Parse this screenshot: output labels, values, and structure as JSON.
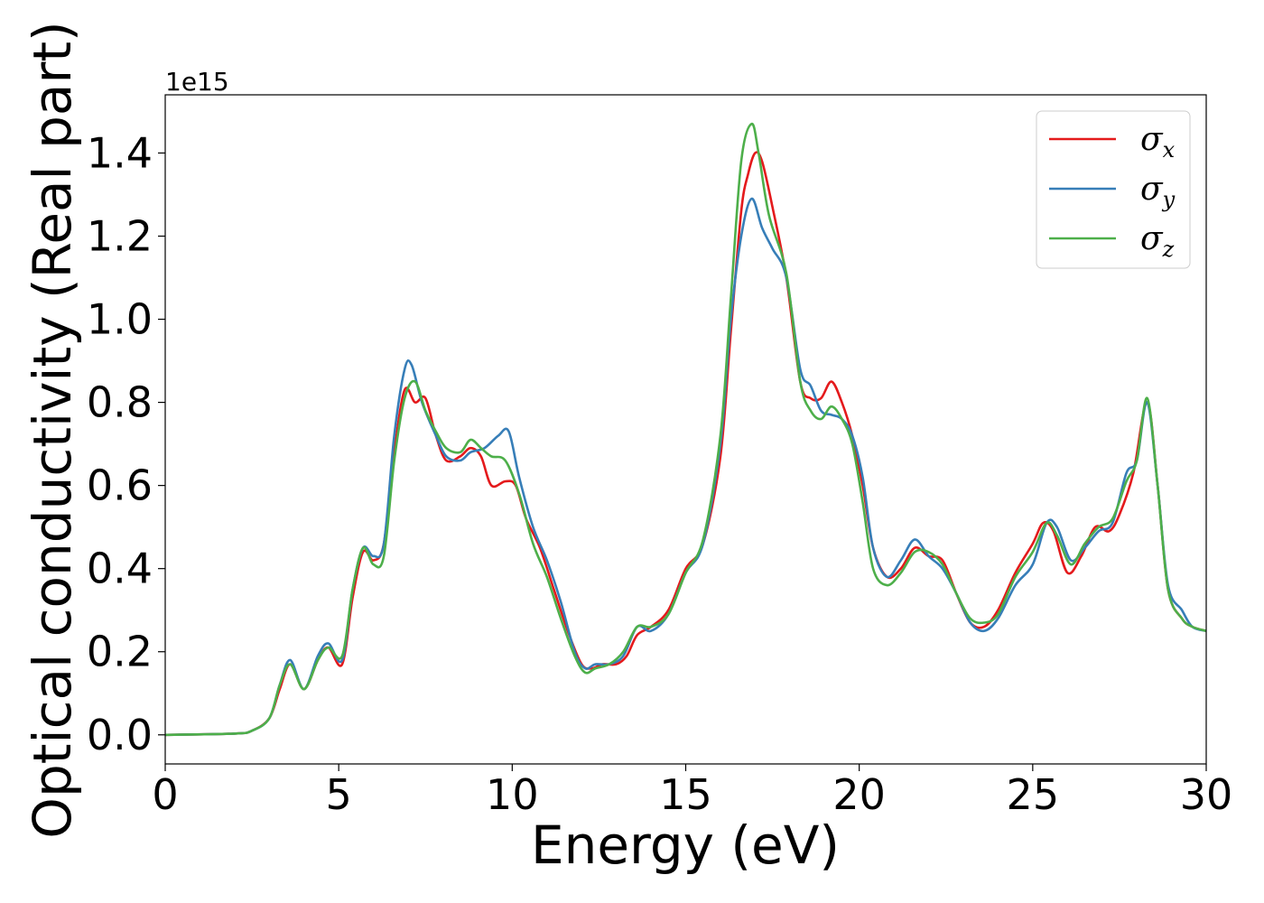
{
  "chart_data": {
    "type": "line",
    "xlabel": "Energy (eV)",
    "ylabel": "Optical conductivity (Real part)",
    "offset_text": "1e15",
    "xlim": [
      0,
      30
    ],
    "ylim": [
      -0.07,
      1.54
    ],
    "xticks": [
      0,
      5,
      10,
      15,
      20,
      25,
      30
    ],
    "yticks": [
      0.0,
      0.2,
      0.4,
      0.6,
      0.8,
      1.0,
      1.2,
      1.4
    ],
    "xtick_labels": [
      "0",
      "5",
      "10",
      "15",
      "20",
      "25",
      "30"
    ],
    "ytick_labels": [
      "0.0",
      "0.2",
      "0.4",
      "0.6",
      "0.8",
      "1.0",
      "1.2",
      "1.4"
    ],
    "grid": false,
    "legend_position": "top-right",
    "series": [
      {
        "name": "σx",
        "symbol": "σ",
        "subscript": "x",
        "color": "#e41a1c",
        "points": [
          [
            0,
            0.0
          ],
          [
            2.0,
            0.003
          ],
          [
            2.5,
            0.01
          ],
          [
            3.0,
            0.04
          ],
          [
            3.3,
            0.11
          ],
          [
            3.6,
            0.17
          ],
          [
            4.0,
            0.11
          ],
          [
            4.4,
            0.18
          ],
          [
            4.7,
            0.21
          ],
          [
            5.1,
            0.17
          ],
          [
            5.4,
            0.33
          ],
          [
            5.7,
            0.44
          ],
          [
            6.0,
            0.42
          ],
          [
            6.3,
            0.46
          ],
          [
            6.6,
            0.68
          ],
          [
            6.9,
            0.83
          ],
          [
            7.2,
            0.8
          ],
          [
            7.5,
            0.81
          ],
          [
            7.8,
            0.72
          ],
          [
            8.1,
            0.66
          ],
          [
            8.5,
            0.67
          ],
          [
            8.8,
            0.69
          ],
          [
            9.1,
            0.67
          ],
          [
            9.4,
            0.6
          ],
          [
            9.8,
            0.61
          ],
          [
            10.1,
            0.6
          ],
          [
            10.4,
            0.52
          ],
          [
            10.8,
            0.45
          ],
          [
            11.2,
            0.35
          ],
          [
            11.6,
            0.25
          ],
          [
            12.0,
            0.17
          ],
          [
            12.3,
            0.16
          ],
          [
            12.6,
            0.17
          ],
          [
            13.0,
            0.17
          ],
          [
            13.3,
            0.19
          ],
          [
            13.6,
            0.24
          ],
          [
            14.0,
            0.26
          ],
          [
            14.5,
            0.3
          ],
          [
            15.0,
            0.4
          ],
          [
            15.5,
            0.46
          ],
          [
            16.0,
            0.67
          ],
          [
            16.3,
            0.97
          ],
          [
            16.6,
            1.26
          ],
          [
            16.8,
            1.35
          ],
          [
            17.0,
            1.4
          ],
          [
            17.2,
            1.38
          ],
          [
            17.5,
            1.27
          ],
          [
            17.9,
            1.1
          ],
          [
            18.3,
            0.85
          ],
          [
            18.6,
            0.81
          ],
          [
            18.9,
            0.81
          ],
          [
            19.2,
            0.85
          ],
          [
            19.5,
            0.8
          ],
          [
            19.8,
            0.72
          ],
          [
            20.1,
            0.6
          ],
          [
            20.4,
            0.45
          ],
          [
            20.8,
            0.38
          ],
          [
            21.2,
            0.4
          ],
          [
            21.6,
            0.45
          ],
          [
            22.0,
            0.43
          ],
          [
            22.4,
            0.42
          ],
          [
            22.8,
            0.34
          ],
          [
            23.2,
            0.27
          ],
          [
            23.6,
            0.26
          ],
          [
            24.0,
            0.3
          ],
          [
            24.5,
            0.39
          ],
          [
            25.0,
            0.46
          ],
          [
            25.3,
            0.51
          ],
          [
            25.6,
            0.49
          ],
          [
            26.0,
            0.39
          ],
          [
            26.4,
            0.43
          ],
          [
            26.8,
            0.5
          ],
          [
            27.2,
            0.49
          ],
          [
            27.5,
            0.53
          ],
          [
            27.9,
            0.63
          ],
          [
            28.3,
            0.8
          ],
          [
            28.6,
            0.6
          ],
          [
            28.9,
            0.35
          ],
          [
            29.3,
            0.28
          ],
          [
            29.6,
            0.26
          ],
          [
            30.0,
            0.25
          ]
        ]
      },
      {
        "name": "σy",
        "symbol": "σ",
        "subscript": "y",
        "color": "#377eb8",
        "points": [
          [
            0,
            0.0
          ],
          [
            2.0,
            0.003
          ],
          [
            2.5,
            0.01
          ],
          [
            3.0,
            0.04
          ],
          [
            3.3,
            0.12
          ],
          [
            3.6,
            0.18
          ],
          [
            4.0,
            0.11
          ],
          [
            4.4,
            0.19
          ],
          [
            4.7,
            0.22
          ],
          [
            5.1,
            0.18
          ],
          [
            5.4,
            0.35
          ],
          [
            5.7,
            0.45
          ],
          [
            6.0,
            0.43
          ],
          [
            6.3,
            0.46
          ],
          [
            6.6,
            0.72
          ],
          [
            6.9,
            0.88
          ],
          [
            7.1,
            0.89
          ],
          [
            7.4,
            0.8
          ],
          [
            7.8,
            0.72
          ],
          [
            8.1,
            0.67
          ],
          [
            8.5,
            0.66
          ],
          [
            8.8,
            0.68
          ],
          [
            9.2,
            0.69
          ],
          [
            9.6,
            0.72
          ],
          [
            9.9,
            0.73
          ],
          [
            10.2,
            0.62
          ],
          [
            10.6,
            0.5
          ],
          [
            11.0,
            0.42
          ],
          [
            11.4,
            0.32
          ],
          [
            11.8,
            0.2
          ],
          [
            12.1,
            0.16
          ],
          [
            12.4,
            0.17
          ],
          [
            12.8,
            0.17
          ],
          [
            13.2,
            0.19
          ],
          [
            13.6,
            0.26
          ],
          [
            14.0,
            0.25
          ],
          [
            14.5,
            0.29
          ],
          [
            15.0,
            0.39
          ],
          [
            15.5,
            0.46
          ],
          [
            16.0,
            0.7
          ],
          [
            16.3,
            1.0
          ],
          [
            16.6,
            1.2
          ],
          [
            16.9,
            1.29
          ],
          [
            17.2,
            1.22
          ],
          [
            17.5,
            1.17
          ],
          [
            17.9,
            1.1
          ],
          [
            18.3,
            0.88
          ],
          [
            18.6,
            0.84
          ],
          [
            18.9,
            0.78
          ],
          [
            19.2,
            0.77
          ],
          [
            19.5,
            0.76
          ],
          [
            19.8,
            0.72
          ],
          [
            20.1,
            0.62
          ],
          [
            20.4,
            0.45
          ],
          [
            20.8,
            0.38
          ],
          [
            21.2,
            0.42
          ],
          [
            21.6,
            0.47
          ],
          [
            22.0,
            0.43
          ],
          [
            22.4,
            0.4
          ],
          [
            22.8,
            0.34
          ],
          [
            23.2,
            0.27
          ],
          [
            23.6,
            0.25
          ],
          [
            24.0,
            0.28
          ],
          [
            24.5,
            0.36
          ],
          [
            25.0,
            0.41
          ],
          [
            25.4,
            0.51
          ],
          [
            25.7,
            0.5
          ],
          [
            26.1,
            0.42
          ],
          [
            26.5,
            0.45
          ],
          [
            26.9,
            0.49
          ],
          [
            27.3,
            0.51
          ],
          [
            27.7,
            0.63
          ],
          [
            28.0,
            0.66
          ],
          [
            28.3,
            0.8
          ],
          [
            28.6,
            0.6
          ],
          [
            28.9,
            0.36
          ],
          [
            29.3,
            0.3
          ],
          [
            29.6,
            0.26
          ],
          [
            30.0,
            0.25
          ]
        ]
      },
      {
        "name": "σz",
        "symbol": "σ",
        "subscript": "z",
        "color": "#4daf4a",
        "points": [
          [
            0,
            0.0
          ],
          [
            2.0,
            0.003
          ],
          [
            2.5,
            0.01
          ],
          [
            3.0,
            0.04
          ],
          [
            3.3,
            0.12
          ],
          [
            3.6,
            0.17
          ],
          [
            4.0,
            0.11
          ],
          [
            4.4,
            0.18
          ],
          [
            4.7,
            0.21
          ],
          [
            5.1,
            0.19
          ],
          [
            5.4,
            0.35
          ],
          [
            5.7,
            0.45
          ],
          [
            6.0,
            0.41
          ],
          [
            6.3,
            0.43
          ],
          [
            6.6,
            0.66
          ],
          [
            6.9,
            0.81
          ],
          [
            7.2,
            0.85
          ],
          [
            7.5,
            0.78
          ],
          [
            7.8,
            0.73
          ],
          [
            8.1,
            0.69
          ],
          [
            8.5,
            0.68
          ],
          [
            8.8,
            0.71
          ],
          [
            9.1,
            0.69
          ],
          [
            9.4,
            0.67
          ],
          [
            9.8,
            0.66
          ],
          [
            10.2,
            0.58
          ],
          [
            10.6,
            0.46
          ],
          [
            11.0,
            0.38
          ],
          [
            11.4,
            0.28
          ],
          [
            11.8,
            0.19
          ],
          [
            12.1,
            0.15
          ],
          [
            12.4,
            0.16
          ],
          [
            12.8,
            0.17
          ],
          [
            13.2,
            0.2
          ],
          [
            13.6,
            0.26
          ],
          [
            14.0,
            0.26
          ],
          [
            14.5,
            0.29
          ],
          [
            15.0,
            0.39
          ],
          [
            15.5,
            0.47
          ],
          [
            16.0,
            0.72
          ],
          [
            16.3,
            1.05
          ],
          [
            16.6,
            1.38
          ],
          [
            16.9,
            1.47
          ],
          [
            17.1,
            1.4
          ],
          [
            17.4,
            1.25
          ],
          [
            17.9,
            1.11
          ],
          [
            18.3,
            0.85
          ],
          [
            18.6,
            0.78
          ],
          [
            18.9,
            0.76
          ],
          [
            19.2,
            0.79
          ],
          [
            19.5,
            0.76
          ],
          [
            19.8,
            0.7
          ],
          [
            20.1,
            0.56
          ],
          [
            20.4,
            0.4
          ],
          [
            20.8,
            0.36
          ],
          [
            21.2,
            0.39
          ],
          [
            21.6,
            0.44
          ],
          [
            22.0,
            0.44
          ],
          [
            22.4,
            0.41
          ],
          [
            22.8,
            0.34
          ],
          [
            23.2,
            0.28
          ],
          [
            23.6,
            0.27
          ],
          [
            24.0,
            0.29
          ],
          [
            24.5,
            0.38
          ],
          [
            25.0,
            0.44
          ],
          [
            25.4,
            0.51
          ],
          [
            25.7,
            0.48
          ],
          [
            26.1,
            0.41
          ],
          [
            26.5,
            0.46
          ],
          [
            26.9,
            0.5
          ],
          [
            27.3,
            0.52
          ],
          [
            27.7,
            0.61
          ],
          [
            28.0,
            0.66
          ],
          [
            28.3,
            0.81
          ],
          [
            28.6,
            0.6
          ],
          [
            28.9,
            0.35
          ],
          [
            29.3,
            0.28
          ],
          [
            29.6,
            0.26
          ],
          [
            30.0,
            0.25
          ]
        ]
      }
    ]
  }
}
